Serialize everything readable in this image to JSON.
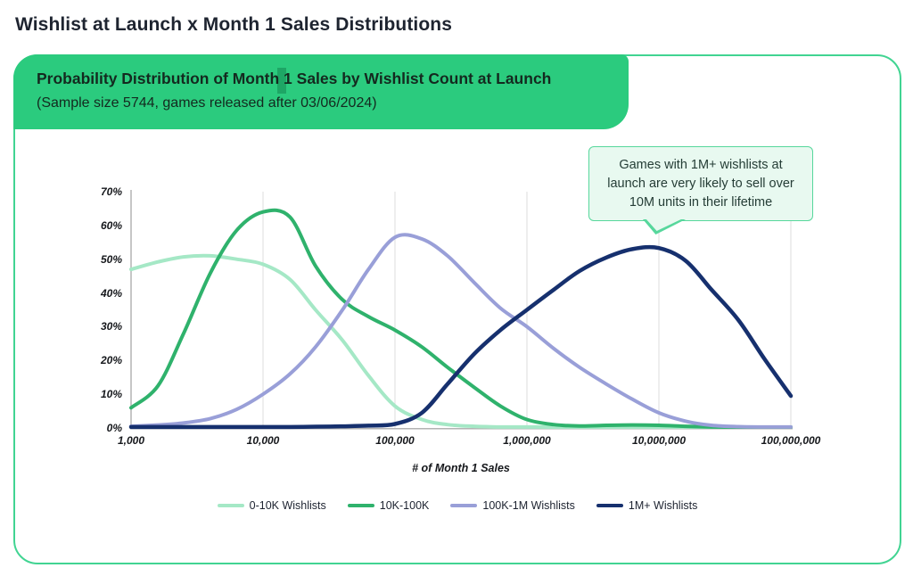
{
  "page": {
    "title": "Wishlist at Launch x Month 1 Sales Distributions"
  },
  "header": {
    "title": "Probability Distribution of Month 1 Sales by Wishlist Count at Launch",
    "subtitle": "(Sample size 5744, games released after 03/06/2024)",
    "bg_color": "#2bcb7e",
    "highlight_color": "#1ea665",
    "text_color": "#14291f"
  },
  "card": {
    "border_color": "#41d492"
  },
  "annotation": {
    "text": "Games with 1M+ wishlists at launch are very likely to sell over 10M units in their lifetime",
    "bg_color": "#e8f9f0",
    "border_color": "#57d79c",
    "text_color": "#253d36"
  },
  "chart_data": {
    "type": "line",
    "title": "Probability Distribution of Month 1 Sales by Wishlist Count at Launch",
    "xlabel": "# of Month 1 Sales",
    "ylabel": "",
    "x_scale": "log10",
    "xlim": [
      1000,
      100000000
    ],
    "ylim_pct": [
      0,
      70
    ],
    "grid": "vertical-only",
    "legend_position": "bottom",
    "axis_color": "#b3b3b3",
    "grid_color": "#dcdcdc",
    "x_ticks": [
      "1,000",
      "10,000",
      "100,000",
      "1,000,000",
      "10,000,000",
      "100,000,000"
    ],
    "y_ticks": [
      "70%",
      "60%",
      "50%",
      "40%",
      "30%",
      "20%",
      "10%",
      "0%"
    ],
    "x": [
      1000,
      1600,
      2500,
      4000,
      6300,
      10000,
      16000,
      25000,
      40000,
      63000,
      100000,
      160000,
      250000,
      400000,
      630000,
      1000000,
      1600000,
      2500000,
      4000000,
      6300000,
      10000000,
      16000000,
      25000000,
      40000000,
      63000000,
      100000000
    ],
    "series": [
      {
        "name": "0-10K Wishlists",
        "color": "#a5e8c6",
        "pct": [
          47,
          49.2,
          50.7,
          51,
          50,
          48.5,
          44,
          35,
          26,
          15.5,
          6.5,
          2.5,
          1,
          0.5,
          0.3,
          0.3,
          0.2,
          0.2,
          0.2,
          0.2,
          0.2,
          0.2,
          0.1,
          0.1,
          0.1,
          0.1
        ]
      },
      {
        "name": "10K-100K",
        "color": "#2fb26c",
        "pct": [
          6,
          12.5,
          28,
          46,
          58.5,
          64,
          62.5,
          48,
          38,
          33,
          29,
          24,
          18,
          12,
          6.5,
          2.5,
          1,
          0.6,
          0.8,
          0.9,
          0.8,
          0.5,
          0.3,
          0.2,
          0.2,
          0.2
        ]
      },
      {
        "name": "100K-1M Wishlists",
        "color": "#999fd8",
        "pct": [
          0.5,
          0.9,
          1.5,
          2.8,
          5.5,
          10,
          16,
          24,
          35,
          47,
          56.5,
          56,
          51,
          43,
          35.5,
          30,
          23.5,
          18,
          13,
          8.5,
          4.5,
          2,
          0.8,
          0.4,
          0.3,
          0.3
        ]
      },
      {
        "name": "1M+ Wishlists",
        "color": "#16306e",
        "pct": [
          0.3,
          0.3,
          0.3,
          0.3,
          0.3,
          0.3,
          0.3,
          0.4,
          0.5,
          0.7,
          1.2,
          4.5,
          13,
          22,
          29,
          35,
          41,
          46.5,
          50.5,
          53,
          53.3,
          49.5,
          41,
          32,
          20.5,
          9.5
        ]
      }
    ]
  }
}
